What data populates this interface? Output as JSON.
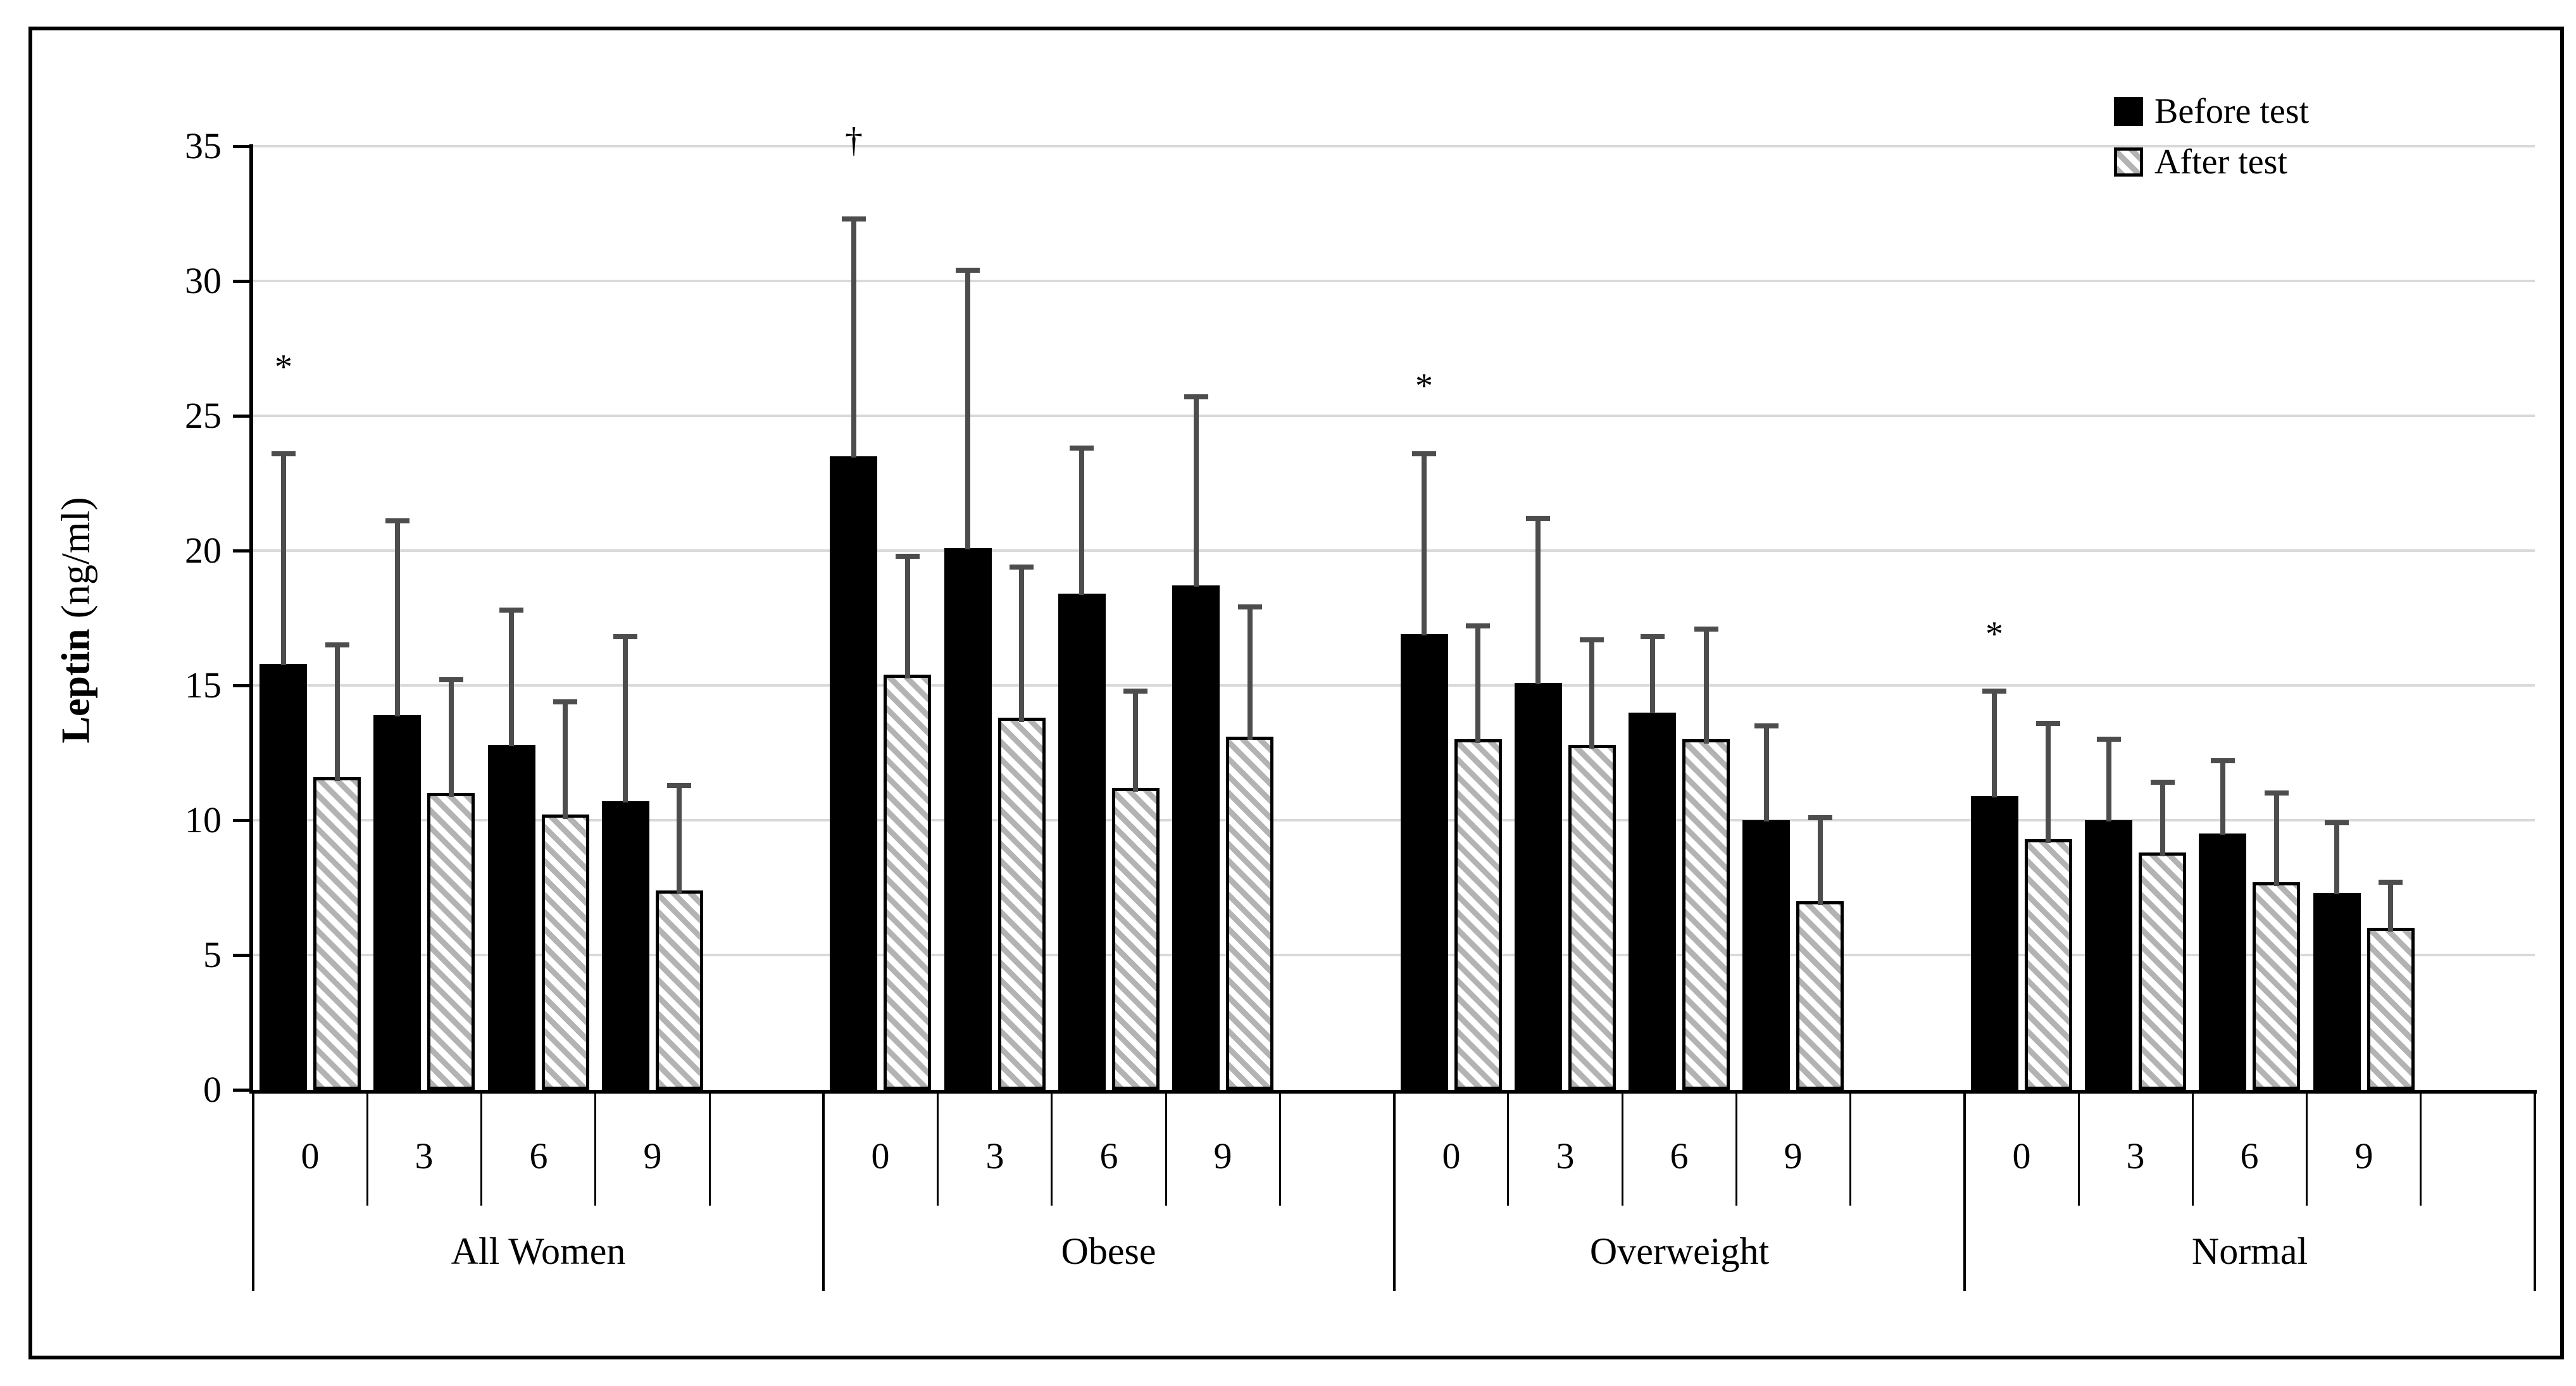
{
  "figure": {
    "y_axis": {
      "title_main": "Leptin",
      "title_unit": "  (ng/ml)"
    }
  },
  "colors": {
    "bar_before_fill": "#000000",
    "bar_after_hatch_gray": "#b3b3b3",
    "bar_after_background": "#ffffff",
    "bar_border": "#000000",
    "error_bar": "#4d4d4d",
    "gridline": "#d9d9d9",
    "axis": "#000000",
    "frame": "#000000"
  },
  "chart_data": {
    "type": "bar",
    "title": "",
    "xlabel": "",
    "ylabel": "Leptin (ng/ml)",
    "ylim": [
      0,
      35
    ],
    "ytick_step": 5,
    "ytick_labels": [
      "0",
      "5",
      "10",
      "15",
      "20",
      "25",
      "30",
      "35"
    ],
    "grid": true,
    "legend_position": "top-right",
    "group_categories": [
      "All Women",
      "Obese",
      "Overweight",
      "Normal"
    ],
    "time_categories": [
      "0",
      "3",
      "6",
      "9"
    ],
    "series": [
      {
        "name": "Before test",
        "style": "solid-black",
        "values": [
          [
            15.8,
            13.9,
            12.8,
            10.7
          ],
          [
            23.5,
            20.1,
            18.4,
            18.7
          ],
          [
            16.9,
            15.1,
            14.0,
            10.0
          ],
          [
            10.9,
            10.0,
            9.5,
            7.3
          ]
        ],
        "error_top": [
          [
            23.6,
            21.1,
            17.8,
            16.8
          ],
          [
            32.3,
            30.4,
            23.8,
            25.7
          ],
          [
            23.6,
            21.2,
            16.8,
            13.5
          ],
          [
            14.8,
            13.0,
            12.2,
            9.9
          ]
        ]
      },
      {
        "name": "After test",
        "style": "gray-hatched",
        "values": [
          [
            11.6,
            11.0,
            10.2,
            7.4
          ],
          [
            15.4,
            13.8,
            11.2,
            13.1
          ],
          [
            13.0,
            12.8,
            13.0,
            7.0
          ],
          [
            9.3,
            8.8,
            7.7,
            6.0
          ]
        ],
        "error_top": [
          [
            16.5,
            15.2,
            14.4,
            11.3
          ],
          [
            19.8,
            19.4,
            14.8,
            17.9
          ],
          [
            17.2,
            16.7,
            17.1,
            10.1
          ],
          [
            13.6,
            11.4,
            11.0,
            7.7
          ]
        ]
      }
    ],
    "significance_markers": [
      {
        "group": "All Women",
        "symbol": "*",
        "y": 26.8
      },
      {
        "group": "Obese",
        "symbol": "†",
        "y": 35.2
      },
      {
        "group": "Overweight",
        "symbol": "*",
        "y": 26.1
      },
      {
        "group": "Normal",
        "symbol": "*",
        "y": 16.9
      }
    ]
  }
}
